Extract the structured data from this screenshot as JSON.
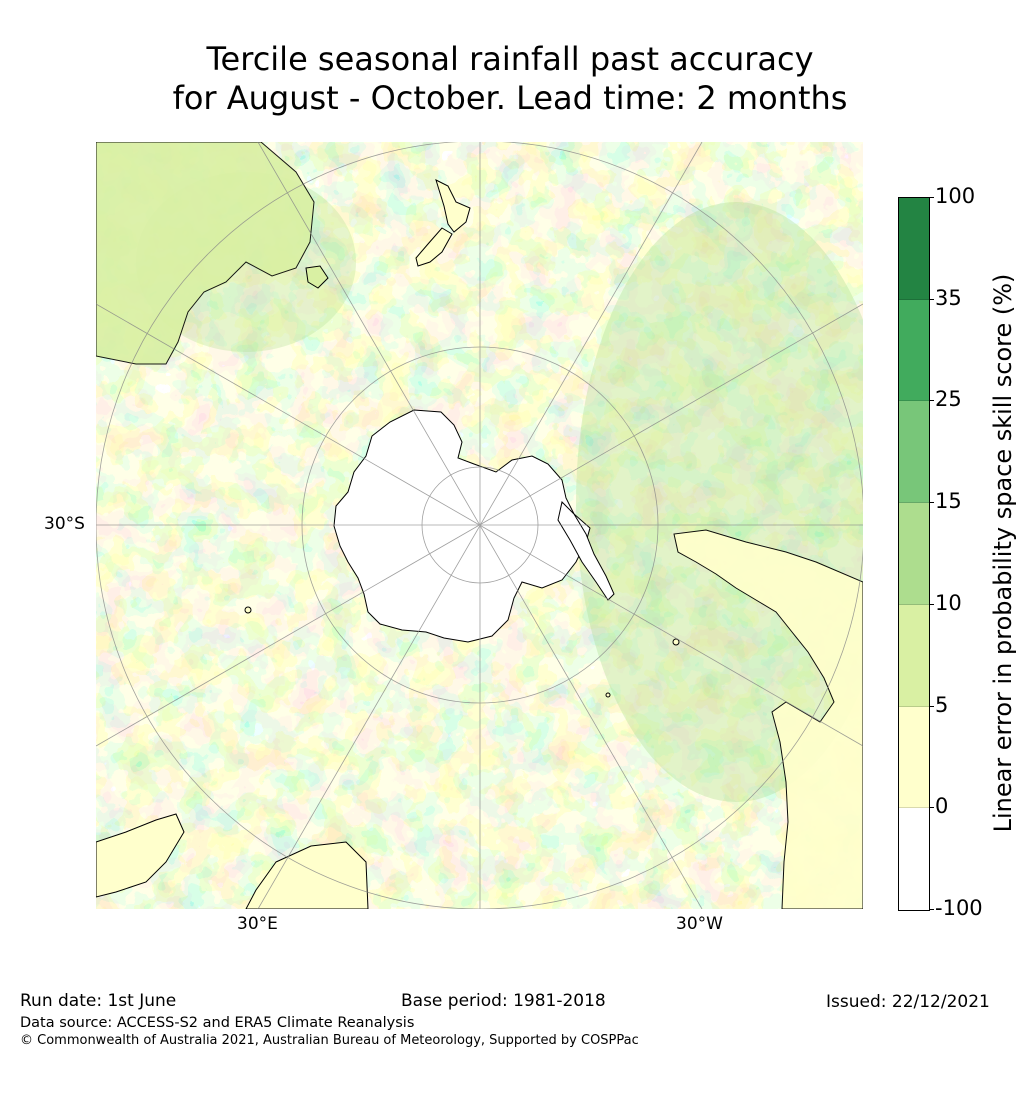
{
  "title": {
    "line1": "Tercile seasonal rainfall past accuracy",
    "line2": "for August - October. Lead time: 2 months"
  },
  "map": {
    "projection": "south-polar-stereographic",
    "lat_label": "30°S",
    "lon_labels": [
      "30°E",
      "30°W"
    ]
  },
  "colorbar": {
    "title": "Linear error in probability space skill score (%)",
    "ticks": [
      "100",
      "35",
      "25",
      "15",
      "10",
      "5",
      "0",
      "-100"
    ],
    "bins": [
      {
        "from": -100,
        "to": 0,
        "color": "#ffffff"
      },
      {
        "from": 0,
        "to": 5,
        "color": "#ffffcc"
      },
      {
        "from": 5,
        "to": 10,
        "color": "#d9f0a3"
      },
      {
        "from": 10,
        "to": 15,
        "color": "#addd8e"
      },
      {
        "from": 15,
        "to": 25,
        "color": "#78c679"
      },
      {
        "from": 25,
        "to": 35,
        "color": "#41ab5d"
      },
      {
        "from": 35,
        "to": 100,
        "color": "#238443"
      }
    ]
  },
  "footer": {
    "run_date": "Run date: 1st June",
    "base_period": "Base period: 1981-2018",
    "issued": "Issued: 22/12/2021",
    "data_source": "Data source: ACCESS-S2 and ERA5 Climate Reanalysis",
    "copyright": "© Commonwealth of Australia 2021, Australian Bureau of Meteorology, Supported by COSPPac"
  }
}
